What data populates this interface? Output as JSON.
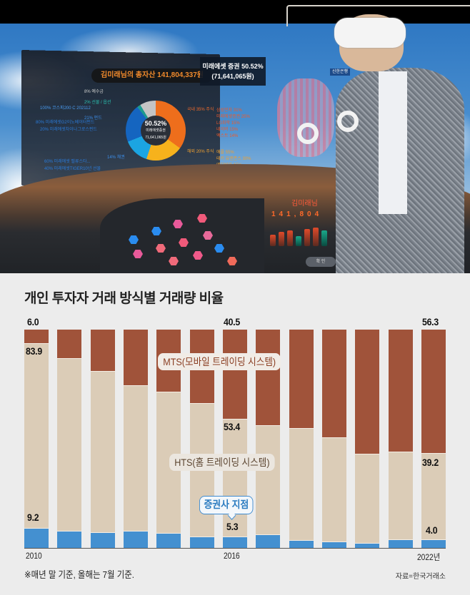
{
  "photo": {
    "panel_title": "김미래님의 총자산 141,804,337원",
    "panel_subtitle_line1": "미래에셋 증권 50.52%",
    "panel_subtitle_line2": "(71,641,065원)",
    "donut_center_pct": "50.52%",
    "donut_center_sub1": "미래에셋증권",
    "donut_center_sub2": "71,641,065원",
    "legend_left": [
      "8% 예수금",
      "2% 선물 / 옵션",
      "21% 펀드",
      "14% 채권"
    ],
    "legend_left_detail": [
      "100% 코스피200 C 202112",
      "80% 미래에셋G2이노베이터펀드",
      "20% 미래에셋차이나그로스펀드",
      "60% 미래에셋 밸류스타...",
      "40% 미래에셋TIGER10년 선물"
    ],
    "legend_right": [
      "국내 35% 주식",
      "해외 20% 주식"
    ],
    "legend_right_detail": [
      "삼성전자 31%",
      "미래에셋증권 25%",
      "LG화학 15%",
      "네이버 15%",
      "엑스트 14%",
      "애플 55%",
      "테키 유엔존스 30%",
      "엔디비아 15%"
    ],
    "counter_name": "김미래님",
    "counter_value": "141,804",
    "confirm_button": "확 인",
    "side_tag": "신한은행"
  },
  "chart_data": {
    "type": "bar",
    "stacked": true,
    "title": "개인 투자자 거래 방식별 거래량 비율",
    "xlabel": "",
    "ylabel": "%",
    "ylim": [
      0,
      100
    ],
    "categories": [
      "2010",
      "2011",
      "2012",
      "2013",
      "2014",
      "2015",
      "2016",
      "2017",
      "2018",
      "2019",
      "2020",
      "2021",
      "2022"
    ],
    "x_tick_labels": [
      "2010",
      "2016",
      "2022년"
    ],
    "series": [
      {
        "name": "증권사 지점",
        "color": "#4490d0",
        "values": [
          9.2,
          7.8,
          7.2,
          7.8,
          6.9,
          5.2,
          5.3,
          6.2,
          3.6,
          2.9,
          2.3,
          3.9,
          4.0
        ]
      },
      {
        "name": "HTS(홈 트레이딩 시스템)",
        "color": "#dbccb7",
        "values": [
          83.9,
          79.1,
          73.8,
          66.7,
          64.7,
          61.1,
          53.4,
          50.0,
          51.3,
          47.8,
          40.8,
          40.2,
          39.2
        ]
      },
      {
        "name": "MTS(모바일 트레이딩 시스템)",
        "color": "#a0533a",
        "values": [
          6.0,
          13.1,
          19.0,
          25.5,
          28.4,
          33.7,
          40.5,
          43.8,
          45.1,
          49.3,
          56.9,
          55.9,
          56.3
        ]
      }
    ],
    "annotations": {
      "mts_2010": "6.0",
      "hts_2010": "83.9",
      "branch_2010": "9.2",
      "mts_2016": "40.5",
      "hts_2016": "53.4",
      "branch_2016": "5.3",
      "mts_2022": "56.3",
      "hts_2022": "39.2",
      "branch_2022": "4.0"
    },
    "legend_labels": {
      "mts": "MTS(모바일 트레이딩 시스템)",
      "hts": "HTS(홈 트레이딩 시스템)",
      "branch": "증권사 지점"
    },
    "footnote": "※매년 말 기준, 올해는 7월 기준.",
    "source": "자료=한국거래소",
    "grid": false,
    "legend_position": "inline callouts"
  }
}
